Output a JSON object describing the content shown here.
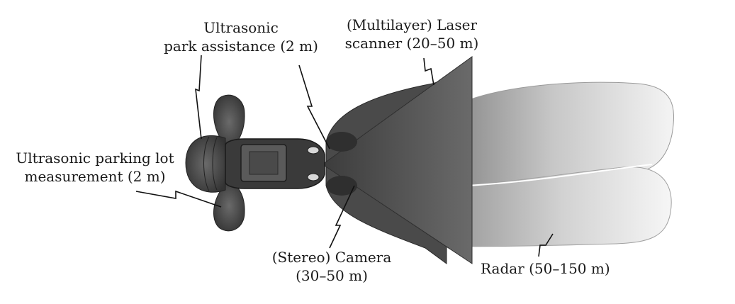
{
  "labels": {
    "park_assist": {
      "line1": "Ultrasonic",
      "line2": "park assistance (2 m)"
    },
    "laser": {
      "line1": "(Multilayer) Laser",
      "line2": "scanner (20–50 m)"
    },
    "lot_measure": {
      "line1": "Ultrasonic parking lot",
      "line2": "measurement (2 m)"
    },
    "camera": {
      "line1": "(Stereo) Camera",
      "line2": "(30–50 m)"
    },
    "radar": {
      "line1": "Radar (50–150 m)"
    }
  },
  "colors": {
    "car_body": "#3a3a3a",
    "car_window": "#5a5a5a",
    "ultrasonic_lobe": "#4a4a4a",
    "laser_scanner": "#555555",
    "camera_cone": "#444444",
    "radar_dark": "#8a8a8a",
    "radar_light": "#f2f2f2",
    "leader_line": "#111111",
    "text": "#1a1a1a"
  }
}
